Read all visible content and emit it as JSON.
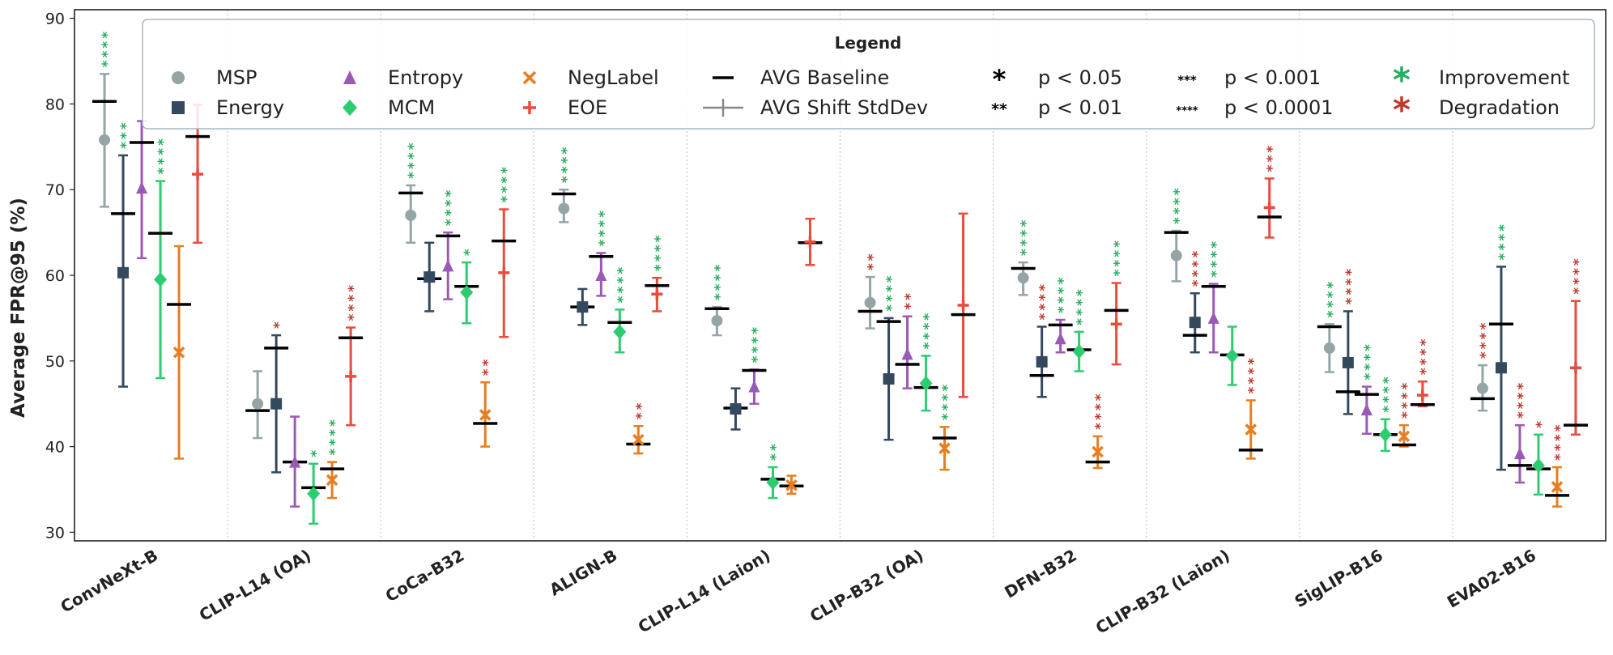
{
  "chart_data": {
    "type": "scatter",
    "title": "",
    "xlabel": "",
    "ylabel": "Average FPR@95 (%)",
    "ylim": [
      29,
      91
    ],
    "yticks": [
      30,
      40,
      50,
      60,
      70,
      80,
      90
    ],
    "grid": "vertical dotted separators between models",
    "legend_position": "top",
    "categories": [
      "ConvNeXt-B",
      "CLIP-L14 (OA)",
      "CoCa-B32",
      "ALIGN-B",
      "CLIP-L14 (Laion)",
      "CLIP-B32 (OA)",
      "DFN-B32",
      "CLIP-B32 (Laion)",
      "SigLIP-B16",
      "EVA02-B16"
    ],
    "series": [
      {
        "name": "MSP",
        "marker": "circle",
        "color": "#95a5a6",
        "values": [
          75.8,
          45.0,
          67.0,
          67.8,
          54.7,
          56.8,
          59.7,
          62.3,
          51.5,
          46.8
        ],
        "err_low": [
          68.0,
          41.0,
          63.8,
          66.2,
          53.0,
          53.8,
          57.7,
          59.3,
          48.7,
          44.2
        ],
        "err_high": [
          83.5,
          48.8,
          70.5,
          70.0,
          56.3,
          59.8,
          61.5,
          65.2,
          54.3,
          49.5
        ],
        "baseline": [
          80.3,
          44.2,
          69.6,
          69.5,
          56.1,
          55.8,
          60.8,
          65.0,
          54.0,
          45.6
        ],
        "significance": [
          "****",
          "",
          "****",
          "****",
          "****",
          "**",
          "****",
          "****",
          "****",
          "****"
        ],
        "effect": [
          "improvement",
          "",
          "improvement",
          "improvement",
          "improvement",
          "degradation",
          "improvement",
          "improvement",
          "improvement",
          "degradation"
        ]
      },
      {
        "name": "Energy",
        "marker": "square",
        "color": "#34495e",
        "values": [
          60.3,
          45.0,
          59.8,
          56.3,
          44.4,
          47.9,
          49.9,
          54.5,
          49.8,
          49.2
        ],
        "err_low": [
          47.0,
          37.0,
          55.8,
          54.2,
          42.0,
          40.8,
          45.8,
          51.0,
          43.8,
          37.3
        ],
        "err_high": [
          74.0,
          53.0,
          63.8,
          58.4,
          46.8,
          55.0,
          54.0,
          57.9,
          55.8,
          61.0
        ],
        "baseline": [
          67.2,
          51.5,
          59.6,
          56.3,
          44.5,
          54.6,
          48.3,
          53.0,
          46.4,
          54.3
        ],
        "significance": [
          "***",
          "*",
          "",
          "",
          "",
          "****",
          "****",
          "****",
          "****",
          "****"
        ],
        "effect": [
          "improvement",
          "degradation",
          "",
          "",
          "",
          "improvement",
          "degradation",
          "degradation",
          "degradation",
          "improvement"
        ]
      },
      {
        "name": "Entropy",
        "marker": "triangle",
        "color": "#9b59b6",
        "values": [
          70.2,
          38.2,
          61.1,
          60.0,
          47.0,
          50.8,
          52.6,
          55.0,
          44.3,
          39.2
        ],
        "err_low": [
          62.0,
          33.0,
          57.2,
          57.6,
          45.0,
          46.8,
          51.0,
          51.0,
          41.5,
          35.8
        ],
        "err_high": [
          78.0,
          43.5,
          65.0,
          62.6,
          49.0,
          55.2,
          54.8,
          59.0,
          47.0,
          42.5
        ],
        "baseline": [
          75.5,
          38.2,
          64.6,
          62.2,
          48.9,
          49.6,
          54.2,
          58.7,
          46.1,
          37.8
        ],
        "significance": [
          "",
          "",
          "****",
          "****",
          "****",
          "**",
          "****",
          "****",
          "****",
          "****"
        ],
        "effect": [
          "",
          "",
          "improvement",
          "improvement",
          "improvement",
          "degradation",
          "improvement",
          "improvement",
          "improvement",
          "degradation"
        ]
      },
      {
        "name": "MCM",
        "marker": "diamond",
        "color": "#2ecc71",
        "values": [
          59.5,
          34.5,
          58.0,
          53.4,
          35.8,
          47.4,
          51.1,
          50.6,
          41.4,
          37.8
        ],
        "err_low": [
          48.0,
          31.0,
          54.4,
          51.0,
          34.0,
          44.2,
          48.8,
          47.2,
          39.5,
          34.4
        ],
        "err_high": [
          71.0,
          38.0,
          61.5,
          56.0,
          37.6,
          50.6,
          53.4,
          54.0,
          43.2,
          41.4
        ],
        "baseline": [
          64.9,
          35.2,
          58.7,
          54.5,
          36.2,
          46.9,
          51.3,
          50.7,
          41.4,
          37.4
        ],
        "significance": [
          "****",
          "*",
          "*",
          "****",
          "**",
          "****",
          "****",
          "",
          "****",
          "*"
        ],
        "effect": [
          "improvement",
          "improvement",
          "improvement",
          "improvement",
          "improvement",
          "improvement",
          "improvement",
          "",
          "improvement",
          "degradation"
        ]
      },
      {
        "name": "NegLabel",
        "marker": "x",
        "color": "#e67e22",
        "values": [
          51.0,
          36.1,
          43.7,
          40.8,
          35.5,
          39.8,
          39.4,
          42.0,
          41.2,
          35.3
        ],
        "err_low": [
          38.6,
          34.0,
          40.0,
          39.2,
          34.5,
          37.3,
          37.5,
          38.6,
          40.0,
          33.0
        ],
        "err_high": [
          63.4,
          38.2,
          47.5,
          42.4,
          36.6,
          42.3,
          41.2,
          45.4,
          42.5,
          37.6
        ],
        "baseline": [
          56.6,
          37.4,
          42.7,
          40.3,
          35.4,
          41.0,
          38.2,
          39.6,
          40.2,
          34.3
        ],
        "significance": [
          "",
          "****",
          "**",
          "**",
          "",
          "****",
          "****",
          "****",
          "****",
          "****"
        ],
        "effect": [
          "",
          "improvement",
          "degradation",
          "degradation",
          "",
          "improvement",
          "degradation",
          "degradation",
          "degradation",
          "degradation"
        ]
      },
      {
        "name": "EOE",
        "marker": "plus",
        "color": "#e74c3c",
        "values": [
          71.8,
          48.2,
          60.3,
          57.8,
          63.9,
          56.5,
          54.3,
          67.9,
          46.0,
          49.2
        ],
        "err_low": [
          63.8,
          42.5,
          52.8,
          55.8,
          61.2,
          45.8,
          49.6,
          64.4,
          44.7,
          41.4
        ],
        "err_high": [
          79.9,
          53.9,
          67.7,
          59.7,
          66.6,
          67.2,
          59.1,
          71.3,
          47.6,
          57.0
        ],
        "baseline": [
          76.2,
          52.7,
          64.0,
          58.8,
          63.8,
          55.4,
          55.9,
          66.8,
          44.9,
          42.5
        ],
        "significance": [
          "",
          "****",
          "****",
          "****",
          "",
          "",
          "****",
          "***",
          "****",
          "****"
        ],
        "effect": [
          "",
          "degradation",
          "improvement",
          "improvement",
          "",
          "",
          "improvement",
          "degradation",
          "degradation",
          "degradation"
        ]
      }
    ],
    "legend": {
      "title": "Legend",
      "entries": [
        "MSP",
        "Energy",
        "Entropy",
        "MCM",
        "NegLabel",
        "EOE",
        "AVG Baseline",
        "AVG Shift StdDev",
        "p < 0.05",
        "p < 0.01",
        "p < 0.001",
        "p < 0.0001",
        "Improvement",
        "Degradation"
      ]
    },
    "effect_colors": {
      "improvement": "#27ae60",
      "degradation": "#c0392b"
    }
  }
}
